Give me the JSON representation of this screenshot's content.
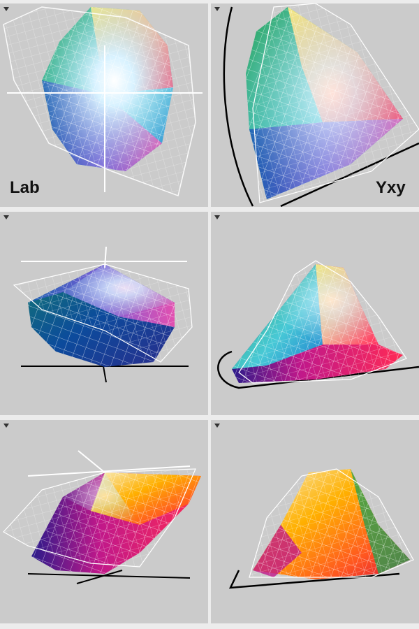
{
  "panels": [
    {
      "id": "lab-top",
      "label": "Lab"
    },
    {
      "id": "yxy-top",
      "label": "Yxy"
    },
    {
      "id": "lab-side",
      "label": ""
    },
    {
      "id": "yxy-side",
      "label": ""
    },
    {
      "id": "lab-bottom",
      "label": ""
    },
    {
      "id": "yxy-bottom",
      "label": ""
    }
  ],
  "icons": {
    "menu": "triangle-down-icon"
  },
  "colors": {
    "background": "#cbcbcb",
    "divider": "#ececec",
    "wireframe": "#ffffff",
    "locus": "#000000"
  }
}
